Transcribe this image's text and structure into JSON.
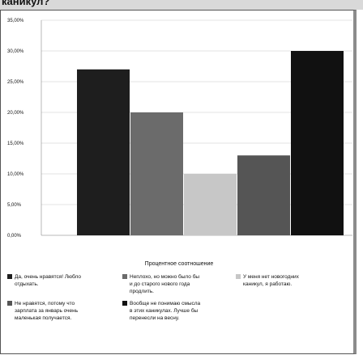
{
  "header": {
    "title": "каникул?"
  },
  "chart_data": {
    "type": "bar",
    "title": "",
    "xlabel": "Процентное соотношение",
    "ylabel": "",
    "ylim": [
      0,
      35
    ],
    "yticks": [
      "0,00%",
      "5,00%",
      "10,00%",
      "15,00%",
      "20,00%",
      "25,00%",
      "30,00%",
      "35,00%"
    ],
    "yticks_values": [
      0,
      5,
      10,
      15,
      20,
      25,
      30,
      35
    ],
    "grid": true,
    "legend_position": "bottom",
    "series": [
      {
        "name": "Да, очень нравятся! Любло отдыхать.",
        "values": [
          27
        ],
        "color": "#1e1e1e"
      },
      {
        "name": "Неплохо, но можно было бы и до старого нового года продлить.",
        "values": [
          20
        ],
        "color": "#6b6b6b"
      },
      {
        "name": "У меня нет новогодних каникул, я работаю.",
        "values": [
          10
        ],
        "color": "#c7c7c7"
      },
      {
        "name": "Не нравятся, потому что зарплата за январь очень маленькая получается.",
        "values": [
          13
        ],
        "color": "#555555"
      },
      {
        "name": "Вообще не понимаю смысла в этих каникулах. Лучше бы перенесли на весну.",
        "values": [
          30
        ],
        "color": "#111111"
      }
    ]
  },
  "legend": {
    "items": [
      {
        "lines": [
          "Да, очень нравятся! Любло",
          "отдыхать."
        ],
        "color": "#1e1e1e"
      },
      {
        "lines": [
          "Неплохо, но можно было бы",
          "и до старого нового года",
          "продлить."
        ],
        "color": "#6b6b6b"
      },
      {
        "lines": [
          "У меня нет новогодних",
          "каникул, я работаю."
        ],
        "color": "#c7c7c7"
      },
      {
        "lines": [
          "Не нравятся, потому что",
          "зарплата за январь очень",
          "маленькая получается."
        ],
        "color": "#555555"
      },
      {
        "lines": [
          "Вообще не понимаю смысла",
          "в этих каникулах. Лучше бы",
          "перенесли на весну."
        ],
        "color": "#111111"
      }
    ]
  }
}
